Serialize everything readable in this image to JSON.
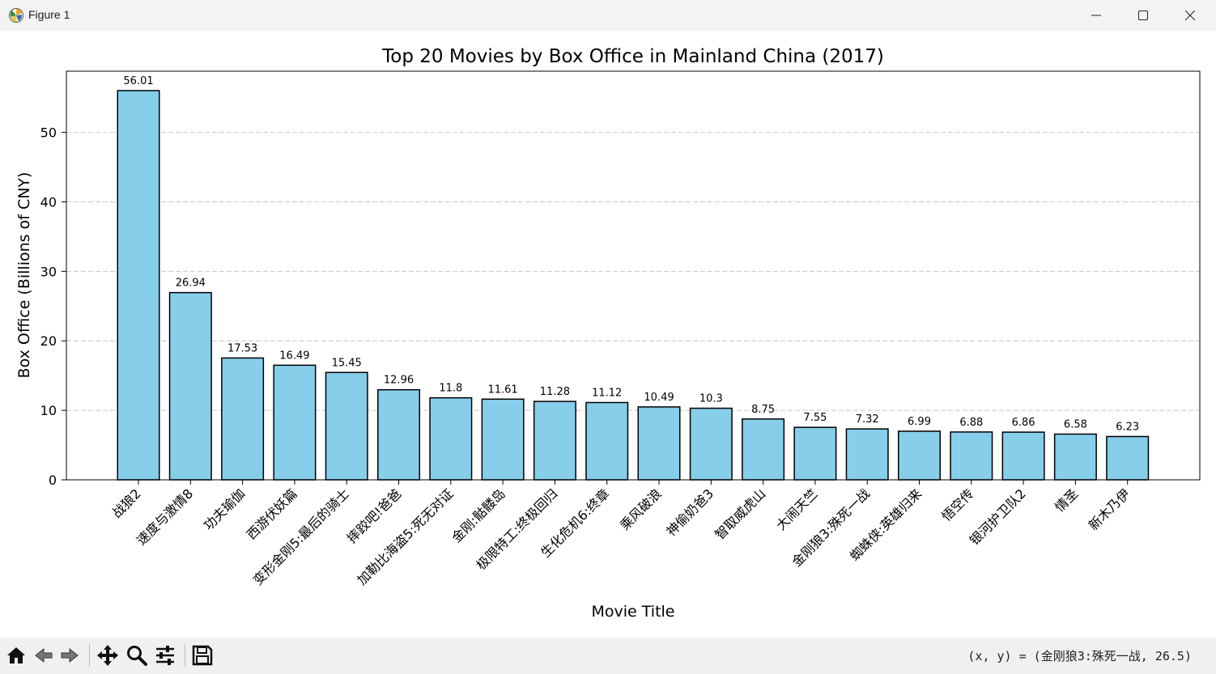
{
  "window": {
    "title": "Figure 1",
    "icon": "matplotlib-icon"
  },
  "toolbar": {
    "tools": [
      "home-icon",
      "back-icon",
      "forward-icon",
      "pan-icon",
      "zoom-icon",
      "configure-subplots-icon",
      "save-icon"
    ],
    "coords": "(x, y) = (金刚狼3:殊死一战, 26.5)"
  },
  "colors": {
    "bar_fill": "#87ceeb",
    "bar_edge": "#000000",
    "grid": "#b0b0b0"
  },
  "chart_data": {
    "type": "bar",
    "title": "Top 20 Movies by Box Office in Mainland China (2017)",
    "xlabel": "Movie Title",
    "ylabel": "Box Office (Billions of CNY)",
    "ylim": [
      0,
      58.8
    ],
    "yticks": [
      0,
      10,
      20,
      30,
      40,
      50
    ],
    "grid": "y-dashed",
    "categories": [
      "战狼2",
      "速度与激情8",
      "功夫瑜伽",
      "西游伏妖篇",
      "变形金刚5:最后的骑士",
      "摔跤吧!爸爸",
      "加勒比海盗5:死无对证",
      "金刚:骷髅岛",
      "极限特工:终极回归",
      "生化危机6:终章",
      "乘风破浪",
      "神偷奶爸3",
      "智取威虎山",
      "大闹天竺",
      "金刚狼3:殊死一战",
      "蜘蛛侠:英雄归来",
      "悟空传",
      "银河护卫队2",
      "情圣",
      "新木乃伊"
    ],
    "values": [
      56.01,
      26.94,
      17.53,
      16.49,
      15.45,
      12.96,
      11.8,
      11.61,
      11.28,
      11.12,
      10.49,
      10.3,
      8.75,
      7.55,
      7.32,
      6.99,
      6.88,
      6.86,
      6.58,
      6.23
    ],
    "value_labels": [
      "56.01",
      "26.94",
      "17.53",
      "16.49",
      "15.45",
      "12.96",
      "11.8",
      "11.61",
      "11.28",
      "11.12",
      "10.49",
      "10.3",
      "8.75",
      "7.55",
      "7.32",
      "6.99",
      "6.88",
      "6.86",
      "6.58",
      "6.23"
    ]
  }
}
